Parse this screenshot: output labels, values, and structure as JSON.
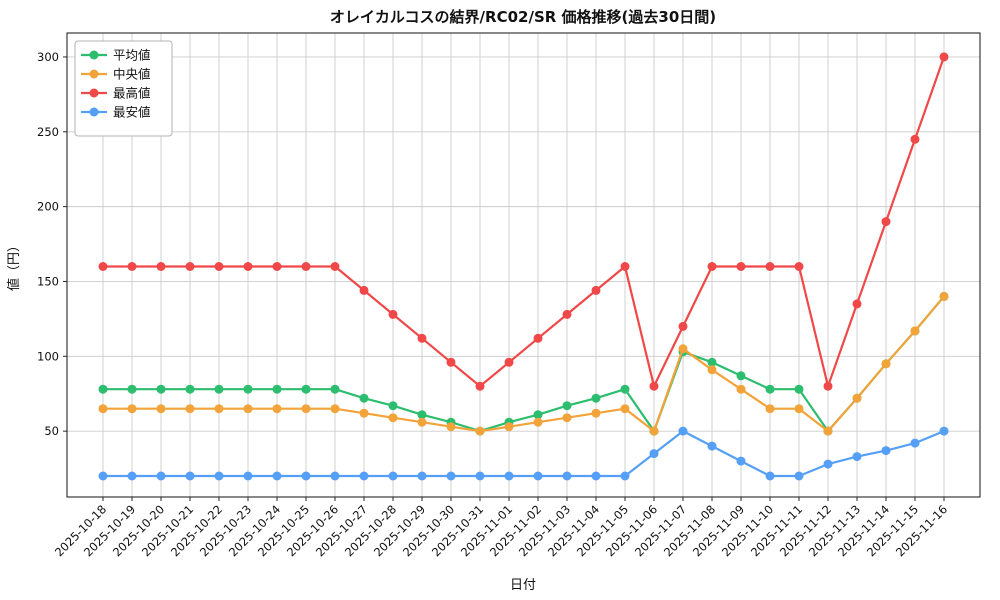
{
  "chart_data": {
    "type": "line",
    "title": "オレイカルコスの結界/RC02/SR 価格推移(過去30日間)",
    "xlabel": "日付",
    "ylabel": "値（円）",
    "x": [
      "2025-10-18",
      "2025-10-19",
      "2025-10-20",
      "2025-10-21",
      "2025-10-22",
      "2025-10-23",
      "2025-10-24",
      "2025-10-25",
      "2025-10-26",
      "2025-10-27",
      "2025-10-28",
      "2025-10-29",
      "2025-10-30",
      "2025-10-31",
      "2025-11-01",
      "2025-11-02",
      "2025-11-03",
      "2025-11-04",
      "2025-11-05",
      "2025-11-06",
      "2025-11-07",
      "2025-11-08",
      "2025-11-09",
      "2025-11-10",
      "2025-11-11",
      "2025-11-12",
      "2025-11-13",
      "2025-11-14",
      "2025-11-15",
      "2025-11-16"
    ],
    "series": [
      {
        "name": "平均値",
        "color": "#2dbd6e",
        "values": [
          78,
          78,
          78,
          78,
          78,
          78,
          78,
          78,
          78,
          72,
          67,
          61,
          56,
          50,
          56,
          61,
          67,
          72,
          78,
          50,
          103,
          96,
          87,
          78,
          78,
          50,
          72,
          95,
          117,
          140
        ]
      },
      {
        "name": "中央値",
        "color": "#f2a33a",
        "values": [
          65,
          65,
          65,
          65,
          65,
          65,
          65,
          65,
          65,
          62,
          59,
          56,
          53,
          50,
          53,
          56,
          59,
          62,
          65,
          50,
          105,
          91,
          78,
          65,
          65,
          50,
          72,
          95,
          117,
          140
        ]
      },
      {
        "name": "最高値",
        "color": "#f04848",
        "values": [
          160,
          160,
          160,
          160,
          160,
          160,
          160,
          160,
          160,
          144,
          128,
          112,
          96,
          80,
          96,
          112,
          128,
          144,
          160,
          80,
          120,
          160,
          160,
          160,
          160,
          80,
          135,
          190,
          245,
          300
        ]
      },
      {
        "name": "最安値",
        "color": "#559ff7",
        "values": [
          20,
          20,
          20,
          20,
          20,
          20,
          20,
          20,
          20,
          20,
          20,
          20,
          20,
          20,
          20,
          20,
          20,
          20,
          20,
          35,
          50,
          40,
          30,
          20,
          20,
          28,
          33,
          37,
          42,
          50
        ]
      }
    ],
    "yticks": [
      50,
      100,
      150,
      200,
      250,
      300
    ],
    "ylim": [
      6,
      316
    ],
    "grid": true,
    "legend_position": "upper left",
    "colors": {
      "grid": "#cccccc",
      "spine": "#262626",
      "text": "#111111",
      "background": "#ffffff"
    }
  }
}
